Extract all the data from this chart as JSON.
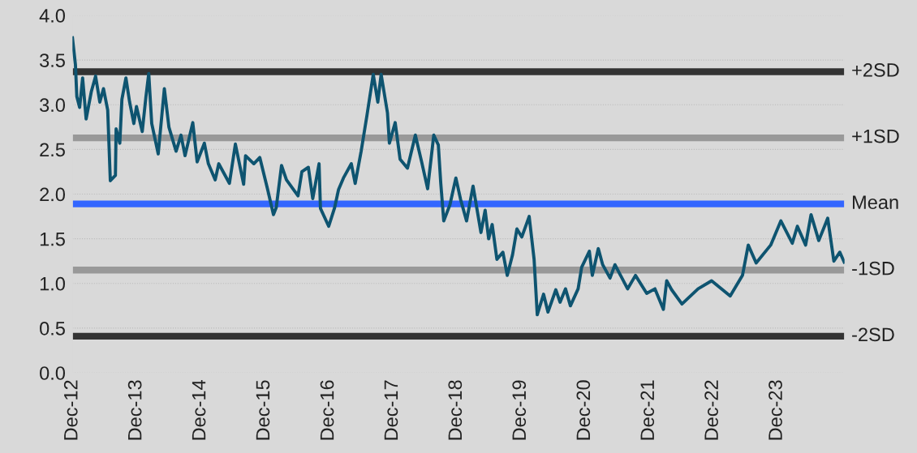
{
  "chart_data": {
    "type": "line",
    "x": [
      "2012-12-01",
      "2012-12-18",
      "2012-12-26",
      "2013-01-11",
      "2013-01-28",
      "2013-02-17",
      "2013-03-19",
      "2013-04-12",
      "2013-05-06",
      "2013-05-27",
      "2013-06-20",
      "2013-07-05",
      "2013-08-03",
      "2013-08-07",
      "2013-08-28",
      "2013-09-09",
      "2013-10-02",
      "2013-10-23",
      "2013-11-16",
      "2013-12-01",
      "2014-01-03",
      "2014-01-24",
      "2014-02-09",
      "2014-02-26",
      "2014-04-04",
      "2014-05-09",
      "2014-06-04",
      "2014-07-15",
      "2014-08-12",
      "2014-09-04",
      "2014-10-18",
      "2014-11-12",
      "2014-12-23",
      "2015-01-15",
      "2015-02-23",
      "2015-03-15",
      "2015-05-15",
      "2015-06-18",
      "2015-08-04",
      "2015-08-15",
      "2015-10-01",
      "2015-11-04",
      "2015-12-18",
      "2016-01-21",
      "2016-02-06",
      "2016-03-07",
      "2016-04-04",
      "2016-06-09",
      "2016-07-01",
      "2016-08-07",
      "2016-09-01",
      "2016-10-07",
      "2016-10-15",
      "2016-12-01",
      "2017-01-04",
      "2017-01-26",
      "2017-02-23",
      "2017-04-09",
      "2017-05-01",
      "2017-06-04",
      "2017-07-07",
      "2017-08-12",
      "2017-09-07",
      "2017-09-26",
      "2017-11-01",
      "2017-11-12",
      "2017-12-15",
      "2018-01-12",
      "2018-02-23",
      "2018-04-09",
      "2018-05-15",
      "2018-06-18",
      "2018-07-23",
      "2018-08-18",
      "2018-09-01",
      "2018-09-18",
      "2018-10-23",
      "2018-11-26",
      "2018-12-23",
      "2019-01-26",
      "2019-03-04",
      "2019-04-18",
      "2019-05-12",
      "2019-06-01",
      "2019-06-21",
      "2019-07-18",
      "2019-08-21",
      "2019-09-15",
      "2019-10-15",
      "2019-11-09",
      "2019-12-07",
      "2020-01-18",
      "2020-02-15",
      "2020-03-04",
      "2020-04-09",
      "2020-05-04",
      "2020-06-18",
      "2020-07-12",
      "2020-08-12",
      "2020-09-09",
      "2020-10-23",
      "2020-11-12",
      "2020-12-26",
      "2021-01-12",
      "2021-02-15",
      "2021-03-12",
      "2021-04-23",
      "2021-05-21",
      "2021-08-01",
      "2021-09-15",
      "2021-11-18",
      "2022-01-04",
      "2022-02-21",
      "2022-03-12",
      "2022-04-09",
      "2022-06-07",
      "2022-09-07",
      "2022-11-23",
      "2023-03-09",
      "2023-05-18",
      "2023-06-20",
      "2023-08-04",
      "2023-10-26",
      "2023-12-23",
      "2024-02-26",
      "2024-03-26",
      "2024-05-12",
      "2024-06-12",
      "2024-07-26",
      "2024-09-15",
      "2024-10-20",
      "2024-11-23",
      "2024-12-18"
    ],
    "series": [
      {
        "color": "#0e5470",
        "values": [
          3.75,
          3.45,
          3.09,
          2.97,
          3.3,
          2.84,
          3.15,
          3.32,
          3.03,
          3.18,
          2.94,
          2.15,
          2.21,
          2.73,
          2.57,
          3.06,
          3.3,
          3.03,
          2.79,
          2.98,
          2.7,
          3.09,
          3.35,
          2.79,
          2.45,
          3.18,
          2.75,
          2.48,
          2.66,
          2.43,
          2.8,
          2.36,
          2.57,
          2.34,
          2.16,
          2.34,
          2.12,
          2.56,
          2.11,
          2.43,
          2.34,
          2.41,
          2.06,
          1.77,
          1.85,
          2.32,
          2.16,
          1.98,
          2.25,
          2.3,
          1.95,
          2.34,
          1.84,
          1.64,
          1.85,
          2.05,
          2.18,
          2.34,
          2.12,
          2.48,
          2.88,
          3.34,
          3.03,
          3.34,
          2.91,
          2.57,
          2.8,
          2.39,
          2.29,
          2.66,
          2.36,
          2.06,
          2.66,
          2.55,
          2.12,
          1.7,
          1.88,
          2.18,
          1.94,
          1.7,
          2.09,
          1.57,
          1.82,
          1.5,
          1.66,
          1.27,
          1.35,
          1.09,
          1.32,
          1.61,
          1.52,
          1.75,
          1.27,
          0.65,
          0.88,
          0.68,
          0.93,
          0.79,
          0.94,
          0.75,
          0.94,
          1.18,
          1.36,
          1.09,
          1.39,
          1.21,
          1.06,
          1.21,
          0.94,
          1.09,
          0.89,
          0.94,
          0.71,
          1.03,
          0.93,
          0.77,
          0.94,
          1.03,
          0.86,
          1.09,
          1.43,
          1.23,
          1.43,
          1.7,
          1.45,
          1.64,
          1.43,
          1.77,
          1.48,
          1.73,
          1.25,
          1.35,
          1.24
        ]
      }
    ],
    "xlim": [
      "2012-12-01",
      "2024-12-20"
    ],
    "xticks": [
      {
        "value": "2012-12-01",
        "label": "Dec-12"
      },
      {
        "value": "2013-12-01",
        "label": "Dec-13"
      },
      {
        "value": "2014-12-01",
        "label": "Dec-14"
      },
      {
        "value": "2015-12-01",
        "label": "Dec-15"
      },
      {
        "value": "2016-12-01",
        "label": "Dec-16"
      },
      {
        "value": "2017-12-01",
        "label": "Dec-17"
      },
      {
        "value": "2018-12-01",
        "label": "Dec-18"
      },
      {
        "value": "2019-12-01",
        "label": "Dec-19"
      },
      {
        "value": "2020-12-01",
        "label": "Dec-20"
      },
      {
        "value": "2021-12-01",
        "label": "Dec-21"
      },
      {
        "value": "2022-12-01",
        "label": "Dec-22"
      },
      {
        "value": "2023-12-01",
        "label": "Dec-23"
      }
    ],
    "ylim": [
      0,
      4
    ],
    "yticks": [
      {
        "value": 0,
        "label": "0.0"
      },
      {
        "value": 0.5,
        "label": "0.5"
      },
      {
        "value": 1,
        "label": "1.0"
      },
      {
        "value": 1.5,
        "label": "1.5"
      },
      {
        "value": 2,
        "label": "2.0"
      },
      {
        "value": 2.5,
        "label": "2.5"
      },
      {
        "value": 3,
        "label": "3.0"
      },
      {
        "value": 3.5,
        "label": "3.5"
      },
      {
        "value": 4,
        "label": "4.0"
      }
    ],
    "grid": "y",
    "line_style": "solid",
    "marker": "none",
    "ref_lines": [
      {
        "axis": "y",
        "value": 3.37,
        "label": "+2SD",
        "color": "#333333"
      },
      {
        "axis": "y",
        "value": 2.63,
        "label": "+1SD",
        "color": "#999999"
      },
      {
        "axis": "y",
        "value": 1.89,
        "label": "Mean",
        "color": "#3366ff"
      },
      {
        "axis": "y",
        "value": 1.15,
        "label": "-1SD",
        "color": "#999999"
      },
      {
        "axis": "y",
        "value": 0.41,
        "label": "-2SD",
        "color": "#333333"
      }
    ]
  }
}
